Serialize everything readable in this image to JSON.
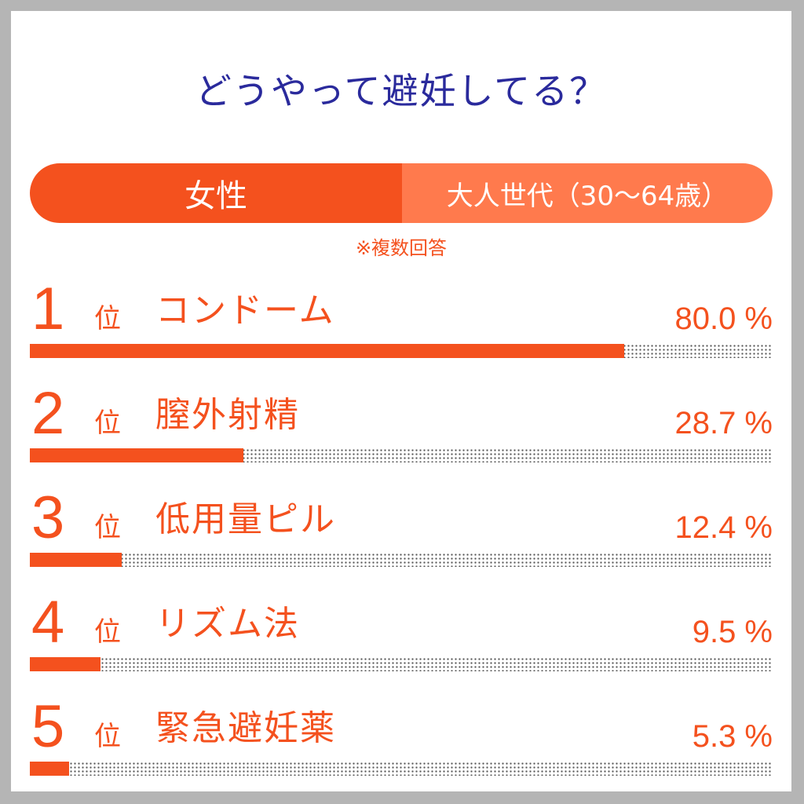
{
  "title": "どうやって避妊してる？",
  "segment": {
    "left_label": "女性",
    "right_label": "大人世代（30〜64歳）"
  },
  "note": "※複数回答",
  "colors": {
    "accent": "#f4511e",
    "accent_light": "#ff7a4d",
    "title": "#2a2a9c"
  },
  "chart_data": {
    "type": "bar",
    "orientation": "horizontal",
    "unit": "%",
    "xlim": [
      0,
      100
    ],
    "rank_suffix": "位",
    "items": [
      {
        "rank": "1",
        "label": "コンドーム",
        "value": 80.0,
        "value_label": "80.0 %"
      },
      {
        "rank": "2",
        "label": "膣外射精",
        "value": 28.7,
        "value_label": "28.7 %"
      },
      {
        "rank": "3",
        "label": "低用量ピル",
        "value": 12.4,
        "value_label": "12.4 %"
      },
      {
        "rank": "4",
        "label": "リズム法",
        "value": 9.5,
        "value_label": "9.5 %"
      },
      {
        "rank": "5",
        "label": "緊急避妊薬",
        "value": 5.3,
        "value_label": "5.3 %"
      }
    ]
  }
}
